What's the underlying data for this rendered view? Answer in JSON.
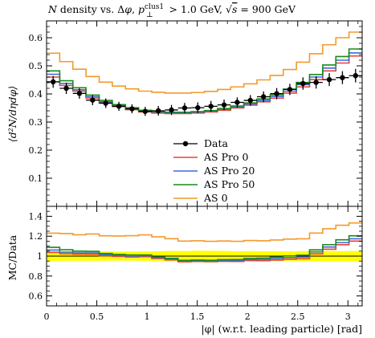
{
  "chart_data": [
    {
      "type": "line",
      "panel": "main",
      "title": "N density vs. Δφ, p⊥clus1 > 1.0 GeV, √s = 900 GeV",
      "title_parts": {
        "n": "N",
        "t1": " density vs. Δ",
        "phi": "φ",
        "t2": ", ",
        "p": "p",
        "sup": "clus1",
        "sub": "⊥",
        "t3": " > 1.0 GeV, ",
        "sqrt": "√",
        "s": "s",
        "t4": " = 900 GeV"
      },
      "xlabel": "|φ| (w.r.t. leading particle) [rad]",
      "ylabel": "⟨d²N/dηdφ⟩",
      "xlim": [
        0,
        3.1416
      ],
      "ylim": [
        0,
        0.66
      ],
      "x_ticks": [
        0,
        0.5,
        1,
        1.5,
        2,
        2.5,
        3
      ],
      "x_tick_labels": [
        "0",
        "0.5",
        "1",
        "1.5",
        "2",
        "2.5",
        "3"
      ],
      "y_ticks": [
        0.1,
        0.2,
        0.3,
        0.4,
        0.5,
        0.6
      ],
      "y_tick_labels": [
        "0.1",
        "0.2",
        "0.3",
        "0.4",
        "0.5",
        "0.6"
      ],
      "legend_position": "center-right",
      "bin_edges": [
        0,
        0.1309,
        0.2618,
        0.3927,
        0.5236,
        0.6545,
        0.7854,
        0.9163,
        1.0472,
        1.1781,
        1.309,
        1.4399,
        1.5708,
        1.7017,
        1.8326,
        1.9635,
        2.0944,
        2.2253,
        2.3562,
        2.4871,
        2.618,
        2.7489,
        2.8798,
        3.0107,
        3.1416
      ],
      "data": {
        "name": "Data",
        "color": "#000000",
        "x": [
          0.0654,
          0.1963,
          0.3272,
          0.4581,
          0.589,
          0.7199,
          0.8508,
          0.9817,
          1.1126,
          1.2435,
          1.3744,
          1.5053,
          1.6362,
          1.7671,
          1.898,
          2.0289,
          2.1598,
          2.2907,
          2.4216,
          2.5525,
          2.6834,
          2.8143,
          2.9452,
          3.0761
        ],
        "y": [
          0.443,
          0.42,
          0.402,
          0.378,
          0.367,
          0.356,
          0.347,
          0.338,
          0.34,
          0.343,
          0.35,
          0.351,
          0.356,
          0.361,
          0.37,
          0.377,
          0.39,
          0.401,
          0.416,
          0.437,
          0.441,
          0.451,
          0.458,
          0.465
        ],
        "err": [
          0.021,
          0.02,
          0.019,
          0.018,
          0.017,
          0.016,
          0.016,
          0.016,
          0.017,
          0.018,
          0.018,
          0.019,
          0.019,
          0.019,
          0.018,
          0.019,
          0.019,
          0.02,
          0.02,
          0.022,
          0.022,
          0.023,
          0.023,
          0.024
        ]
      },
      "series": [
        {
          "name": "AS Pro 0",
          "color": "#e8413a",
          "values": [
            0.46,
            0.43,
            0.41,
            0.385,
            0.368,
            0.355,
            0.344,
            0.336,
            0.332,
            0.33,
            0.33,
            0.332,
            0.336,
            0.342,
            0.35,
            0.36,
            0.372,
            0.385,
            0.403,
            0.425,
            0.451,
            0.482,
            0.51,
            0.535
          ]
        },
        {
          "name": "AS Pro 20",
          "color": "#3a6cd8",
          "values": [
            0.47,
            0.437,
            0.415,
            0.39,
            0.372,
            0.358,
            0.347,
            0.339,
            0.335,
            0.333,
            0.333,
            0.335,
            0.339,
            0.345,
            0.353,
            0.364,
            0.377,
            0.391,
            0.41,
            0.433,
            0.46,
            0.492,
            0.52,
            0.546
          ]
        },
        {
          "name": "AS Pro 50",
          "color": "#1a8a1a",
          "values": [
            0.482,
            0.447,
            0.422,
            0.396,
            0.377,
            0.362,
            0.351,
            0.342,
            0.337,
            0.335,
            0.335,
            0.337,
            0.341,
            0.348,
            0.357,
            0.368,
            0.382,
            0.397,
            0.417,
            0.441,
            0.469,
            0.503,
            0.533,
            0.56
          ]
        },
        {
          "name": "AS 0",
          "color": "#f39a2b",
          "values": [
            0.545,
            0.515,
            0.488,
            0.462,
            0.442,
            0.428,
            0.418,
            0.41,
            0.406,
            0.403,
            0.403,
            0.405,
            0.409,
            0.416,
            0.425,
            0.436,
            0.45,
            0.466,
            0.487,
            0.513,
            0.543,
            0.575,
            0.6,
            0.62
          ]
        }
      ]
    },
    {
      "type": "line",
      "panel": "ratio",
      "ylabel": "MC/Data",
      "xlim": [
        0,
        3.1416
      ],
      "ylim": [
        0.5,
        1.5
      ],
      "y_ticks": [
        0.6,
        0.8,
        1,
        1.2,
        1.4
      ],
      "y_tick_labels": [
        "0.6",
        "0.8",
        "1",
        "1.2",
        "1.4"
      ],
      "band_color": "#ffff00",
      "band_halfwidth": [
        0.048,
        0.047,
        0.047,
        0.047,
        0.046,
        0.045,
        0.046,
        0.047,
        0.049,
        0.052,
        0.051,
        0.054,
        0.053,
        0.052,
        0.049,
        0.05,
        0.049,
        0.049,
        0.048,
        0.05,
        0.05,
        0.051,
        0.05,
        0.052
      ],
      "series": [
        {
          "name": "AS Pro 0",
          "color": "#e8413a",
          "values": [
            1.038,
            1.024,
            1.02,
            1.019,
            1.003,
            0.997,
            0.991,
            0.994,
            0.976,
            0.962,
            0.943,
            0.946,
            0.944,
            0.947,
            0.946,
            0.955,
            0.954,
            0.96,
            0.969,
            0.973,
            1.023,
            1.069,
            1.114,
            1.151
          ]
        },
        {
          "name": "AS Pro 20",
          "color": "#3a6cd8",
          "values": [
            1.061,
            1.04,
            1.032,
            1.032,
            1.014,
            1.006,
            1.0,
            1.003,
            0.985,
            0.971,
            0.951,
            0.954,
            0.952,
            0.956,
            0.954,
            0.966,
            0.967,
            0.975,
            0.986,
            0.991,
            1.043,
            1.091,
            1.135,
            1.174
          ]
        },
        {
          "name": "AS Pro 50",
          "color": "#1a8a1a",
          "values": [
            1.088,
            1.064,
            1.05,
            1.048,
            1.027,
            1.017,
            1.012,
            1.012,
            0.991,
            0.977,
            0.957,
            0.96,
            0.958,
            0.964,
            0.965,
            0.976,
            0.979,
            0.99,
            1.002,
            1.009,
            1.063,
            1.115,
            1.164,
            1.204
          ]
        },
        {
          "name": "AS 0",
          "color": "#f39a2b",
          "values": [
            1.23,
            1.226,
            1.214,
            1.222,
            1.204,
            1.202,
            1.205,
            1.213,
            1.194,
            1.175,
            1.151,
            1.154,
            1.149,
            1.152,
            1.149,
            1.157,
            1.154,
            1.162,
            1.171,
            1.174,
            1.231,
            1.275,
            1.31,
            1.333
          ]
        }
      ]
    }
  ]
}
